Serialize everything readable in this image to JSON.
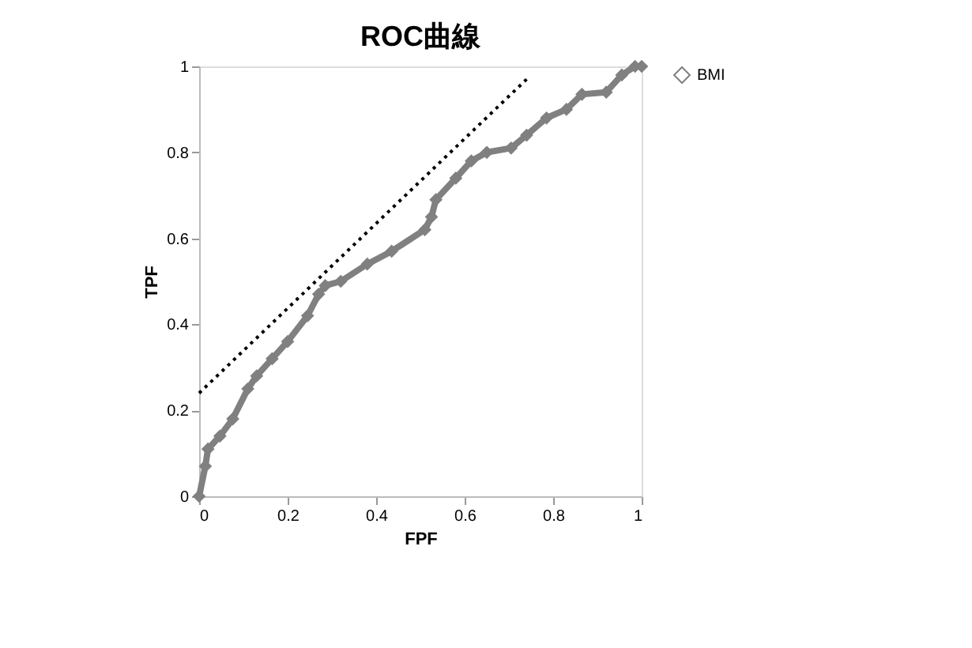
{
  "chart_data": {
    "type": "line",
    "title": "ROC曲線",
    "xlabel": "FPF",
    "ylabel": "TPF",
    "xlim": [
      0,
      1
    ],
    "ylim": [
      0,
      1
    ],
    "xticks": [
      0,
      0.2,
      0.4,
      0.6,
      0.8,
      1
    ],
    "yticks": [
      0,
      0.2,
      0.4,
      0.6,
      0.8,
      1
    ],
    "grid": false,
    "legend": "right",
    "series": [
      {
        "name": "BMI",
        "color": "#808080",
        "marker": "diamond",
        "line_style": "solid",
        "x": [
          0,
          0.014,
          0.02,
          0.047,
          0.076,
          0.11,
          0.13,
          0.165,
          0.2,
          0.245,
          0.27,
          0.285,
          0.32,
          0.38,
          0.435,
          0.51,
          0.525,
          0.535,
          0.58,
          0.615,
          0.65,
          0.705,
          0.74,
          0.785,
          0.83,
          0.865,
          0.92,
          0.955,
          0.985,
          1
        ],
        "values": [
          0,
          0.07,
          0.11,
          0.14,
          0.18,
          0.25,
          0.28,
          0.32,
          0.36,
          0.42,
          0.47,
          0.49,
          0.5,
          0.54,
          0.57,
          0.62,
          0.65,
          0.69,
          0.74,
          0.78,
          0.8,
          0.81,
          0.84,
          0.88,
          0.9,
          0.935,
          0.94,
          0.98,
          1,
          1
        ]
      },
      {
        "type": "line",
        "color": "#000000",
        "marker": "none",
        "line_style": "dotted",
        "x": [
          0,
          0.74
        ],
        "values": [
          0.24,
          0.97
        ]
      }
    ]
  }
}
